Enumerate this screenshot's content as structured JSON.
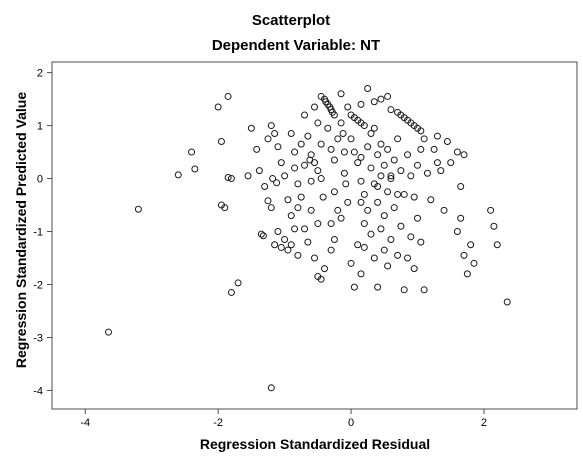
{
  "chart_data": {
    "type": "scatter",
    "title": "Scatterplot",
    "subtitle": "Dependent Variable: NT",
    "xlabel": "Regression Standardized Residual",
    "ylabel": "Regression Standardized Predicted Value",
    "xlim": [
      -4.5,
      3.4
    ],
    "ylim": [
      -4.35,
      2.2
    ],
    "xticks": [
      -4,
      -2,
      0,
      2
    ],
    "yticks": [
      2,
      1,
      0,
      -1,
      -2,
      -3,
      -4
    ],
    "grid": false,
    "legend": "none",
    "marker": "hollow-circle",
    "points": [
      [
        -3.65,
        -2.9
      ],
      [
        -3.2,
        -0.58
      ],
      [
        -2.6,
        0.07
      ],
      [
        -2.4,
        0.5
      ],
      [
        -2.35,
        0.18
      ],
      [
        -2.0,
        1.35
      ],
      [
        -1.95,
        0.7
      ],
      [
        -1.95,
        -0.5
      ],
      [
        -1.9,
        -0.55
      ],
      [
        -1.85,
        1.55
      ],
      [
        -1.85,
        0.02
      ],
      [
        -1.8,
        0.0
      ],
      [
        -1.8,
        -2.15
      ],
      [
        -1.7,
        -1.97
      ],
      [
        -1.55,
        0.05
      ],
      [
        -1.5,
        0.95
      ],
      [
        -1.42,
        0.55
      ],
      [
        -1.38,
        0.15
      ],
      [
        -1.3,
        -0.15
      ],
      [
        -1.25,
        0.75
      ],
      [
        -1.2,
        1.0
      ],
      [
        -1.15,
        0.85
      ],
      [
        -1.1,
        0.6
      ],
      [
        -1.05,
        0.3
      ],
      [
        -1.0,
        0.05
      ],
      [
        -0.95,
        -0.4
      ],
      [
        -0.9,
        -0.7
      ],
      [
        -0.9,
        0.85
      ],
      [
        -0.85,
        0.5
      ],
      [
        -0.8,
        -0.1
      ],
      [
        -1.35,
        -1.05
      ],
      [
        -1.32,
        -1.08
      ],
      [
        -1.25,
        -0.42
      ],
      [
        -1.2,
        -0.55
      ],
      [
        -1.15,
        -1.25
      ],
      [
        -1.1,
        -1.0
      ],
      [
        -1.05,
        -1.3
      ],
      [
        -1.0,
        -1.15
      ],
      [
        -0.95,
        -1.35
      ],
      [
        -0.9,
        -1.25
      ],
      [
        -0.85,
        -0.95
      ],
      [
        -0.8,
        -1.45
      ],
      [
        -0.75,
        -0.35
      ],
      [
        -1.18,
        0.0
      ],
      [
        -1.12,
        -0.08
      ],
      [
        -0.75,
        0.65
      ],
      [
        -0.7,
        0.25
      ],
      [
        -0.7,
        1.2
      ],
      [
        -0.65,
        0.8
      ],
      [
        -0.6,
        0.45
      ],
      [
        -0.6,
        -0.05
      ],
      [
        -0.6,
        -0.6
      ],
      [
        -0.55,
        1.35
      ],
      [
        -0.5,
        1.05
      ],
      [
        -0.5,
        0.15
      ],
      [
        -0.5,
        -0.85
      ],
      [
        -0.45,
        1.55
      ],
      [
        -0.45,
        0.65
      ],
      [
        -0.42,
        -0.35
      ],
      [
        -0.4,
        1.5
      ],
      [
        -0.38,
        1.45
      ],
      [
        -0.35,
        1.4
      ],
      [
        -0.32,
        1.35
      ],
      [
        -0.3,
        1.3
      ],
      [
        -0.28,
        1.25
      ],
      [
        -0.25,
        1.2
      ],
      [
        -0.35,
        0.95
      ],
      [
        -0.3,
        0.55
      ],
      [
        -0.25,
        0.35
      ],
      [
        -0.25,
        -0.25
      ],
      [
        -0.2,
        0.75
      ],
      [
        -0.2,
        -0.6
      ],
      [
        -0.15,
        1.05
      ],
      [
        -0.12,
        0.85
      ],
      [
        -0.1,
        0.5
      ],
      [
        -0.1,
        0.1
      ],
      [
        -0.08,
        -0.1
      ],
      [
        -0.05,
        -0.45
      ],
      [
        -0.5,
        -1.85
      ],
      [
        -0.45,
        -1.9
      ],
      [
        -0.4,
        -1.7
      ],
      [
        -0.3,
        -1.35
      ],
      [
        -0.25,
        -1.15
      ],
      [
        -0.65,
        -1.2
      ],
      [
        -0.7,
        -0.95
      ],
      [
        -0.55,
        -1.5
      ],
      [
        -0.8,
        -0.55
      ],
      [
        -0.85,
        0.2
      ],
      [
        -0.62,
        0.35
      ],
      [
        0.0,
        1.2
      ],
      [
        0.05,
        1.15
      ],
      [
        0.1,
        1.1
      ],
      [
        0.15,
        1.05
      ],
      [
        0.2,
        1.0
      ],
      [
        0.0,
        0.75
      ],
      [
        0.05,
        0.5
      ],
      [
        0.1,
        0.3
      ],
      [
        0.15,
        -0.05
      ],
      [
        0.2,
        -0.3
      ],
      [
        0.25,
        0.6
      ],
      [
        0.25,
        -0.6
      ],
      [
        0.3,
        0.85
      ],
      [
        0.3,
        0.2
      ],
      [
        0.35,
        -0.1
      ],
      [
        0.4,
        0.45
      ],
      [
        0.4,
        -0.45
      ],
      [
        0.45,
        0.65
      ],
      [
        0.45,
        0.05
      ],
      [
        0.5,
        0.25
      ],
      [
        0.5,
        -0.7
      ],
      [
        0.55,
        0.55
      ],
      [
        0.55,
        -0.25
      ],
      [
        0.6,
        0.05
      ],
      [
        0.6,
        1.3
      ],
      [
        0.65,
        0.35
      ],
      [
        0.65,
        -0.55
      ],
      [
        0.7,
        0.75
      ],
      [
        0.7,
        1.25
      ],
      [
        0.75,
        1.2
      ],
      [
        0.8,
        1.15
      ],
      [
        0.85,
        1.1
      ],
      [
        0.9,
        1.05
      ],
      [
        0.95,
        1.0
      ],
      [
        1.0,
        0.95
      ],
      [
        1.05,
        0.9
      ],
      [
        0.75,
        0.15
      ],
      [
        0.8,
        -0.3
      ],
      [
        0.85,
        0.45
      ],
      [
        0.9,
        0.05
      ],
      [
        0.95,
        -0.35
      ],
      [
        1.0,
        0.25
      ],
      [
        1.0,
        -0.75
      ],
      [
        1.05,
        0.55
      ],
      [
        1.1,
        0.75
      ],
      [
        0.0,
        -1.6
      ],
      [
        0.05,
        -2.05
      ],
      [
        0.1,
        -1.25
      ],
      [
        0.15,
        -1.8
      ],
      [
        0.2,
        -0.85
      ],
      [
        0.3,
        -1.05
      ],
      [
        0.35,
        -1.5
      ],
      [
        0.4,
        -2.05
      ],
      [
        0.45,
        -0.95
      ],
      [
        0.5,
        -1.35
      ],
      [
        0.55,
        -1.65
      ],
      [
        0.6,
        -1.15
      ],
      [
        0.7,
        -1.45
      ],
      [
        0.75,
        -0.9
      ],
      [
        0.8,
        -2.1
      ],
      [
        0.85,
        -1.5
      ],
      [
        0.9,
        -1.1
      ],
      [
        0.95,
        -1.7
      ],
      [
        1.05,
        -1.2
      ],
      [
        1.1,
        -2.1
      ],
      [
        1.15,
        0.1
      ],
      [
        1.2,
        -0.4
      ],
      [
        1.25,
        0.55
      ],
      [
        1.3,
        0.8
      ],
      [
        1.35,
        0.15
      ],
      [
        1.4,
        -0.6
      ],
      [
        1.45,
        0.7
      ],
      [
        1.5,
        0.3
      ],
      [
        1.6,
        0.5
      ],
      [
        1.65,
        -0.15
      ],
      [
        1.65,
        -0.75
      ],
      [
        1.7,
        0.45
      ],
      [
        1.75,
        -1.8
      ],
      [
        1.8,
        -1.25
      ],
      [
        1.85,
        -1.6
      ],
      [
        2.1,
        -0.6
      ],
      [
        2.15,
        -0.9
      ],
      [
        2.2,
        -1.25
      ],
      [
        2.35,
        -2.33
      ],
      [
        -1.2,
        -3.95
      ],
      [
        0.2,
        -1.3
      ],
      [
        0.25,
        1.7
      ],
      [
        -0.15,
        1.6
      ],
      [
        0.45,
        1.5
      ],
      [
        0.55,
        1.55
      ],
      [
        0.35,
        1.45
      ],
      [
        0.15,
        1.4
      ],
      [
        -0.05,
        1.35
      ],
      [
        0.35,
        0.95
      ],
      [
        -0.55,
        0.3
      ],
      [
        -0.45,
        0.0
      ],
      [
        0.15,
        0.4
      ],
      [
        0.6,
        0.0
      ],
      [
        -0.3,
        -0.85
      ],
      [
        0.7,
        -0.3
      ],
      [
        0.4,
        -0.15
      ],
      [
        1.3,
        0.3
      ],
      [
        1.6,
        -1.0
      ],
      [
        1.7,
        -1.45
      ],
      [
        -0.15,
        -0.75
      ],
      [
        0.15,
        -0.45
      ]
    ]
  }
}
